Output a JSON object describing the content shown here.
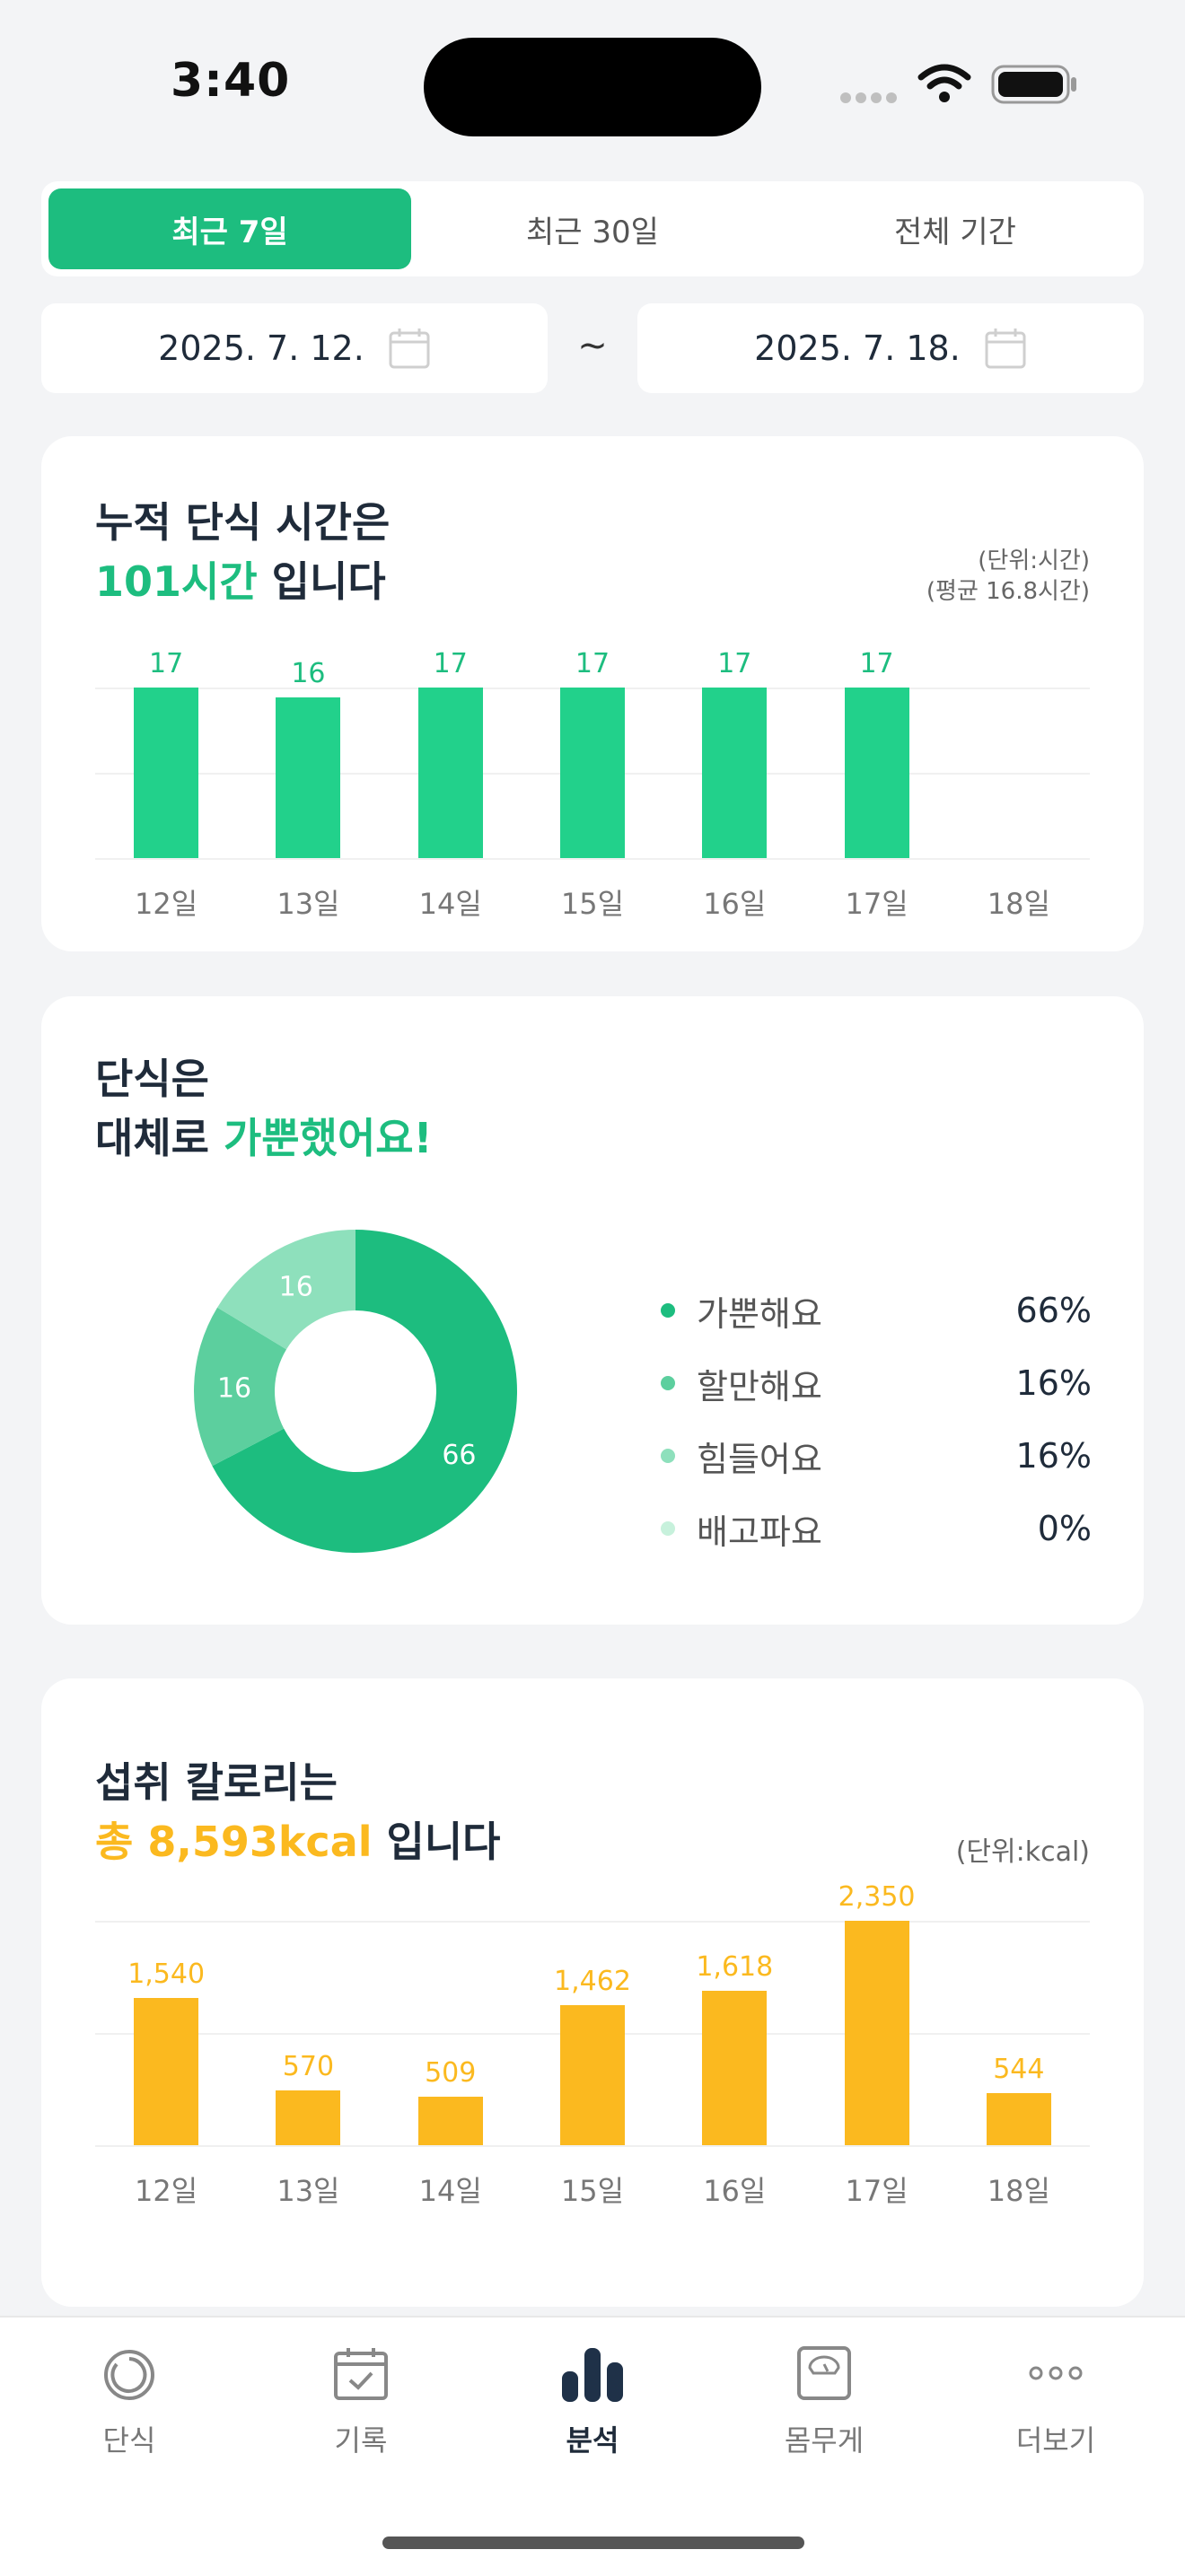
{
  "status": {
    "time": "3:40"
  },
  "tabs": [
    "최근 7일",
    "최근 30일",
    "전체 기간"
  ],
  "date_range": {
    "start": "2025. 7. 12.",
    "end": "2025. 7. 18.",
    "separator": "~"
  },
  "fasting_card": {
    "title_line1": "누적 단식 시간은",
    "highlight": "101시간",
    "title_suffix": " 입니다",
    "unit": "(단위:시간)",
    "average": "(평균 16.8시간)"
  },
  "mood_card": {
    "title_line1": "단식은",
    "title_prefix": "대체로 ",
    "highlight": "가뿐했어요!",
    "legend": [
      {
        "name": "가뿐해요",
        "value": "66%",
        "color": "#1dbd7f"
      },
      {
        "name": "할만해요",
        "value": "16%",
        "color": "#5ccf9e"
      },
      {
        "name": "힘들어요",
        "value": "16%",
        "color": "#8ee0bc"
      },
      {
        "name": "배고파요",
        "value": "0%",
        "color": "#c7f1dc"
      }
    ]
  },
  "calorie_card": {
    "title_line1": "섭취 칼로리는",
    "highlight": "총 8,593kcal",
    "title_suffix": " 입니다",
    "unit": "(단위:kcal)"
  },
  "chart_data": [
    {
      "type": "bar",
      "categories": [
        "12일",
        "13일",
        "14일",
        "15일",
        "16일",
        "17일",
        "18일"
      ],
      "values": [
        17,
        16,
        17,
        17,
        17,
        17,
        null
      ],
      "value_labels": [
        "17",
        "16",
        "17",
        "17",
        "17",
        "17",
        ""
      ],
      "ylim": [
        0,
        17
      ],
      "color": "#22d18b"
    },
    {
      "type": "pie",
      "labels": [
        "가뿐해요",
        "할만해요",
        "힘들어요",
        "배고파요"
      ],
      "values": [
        66,
        16,
        16,
        0
      ],
      "slice_labels": [
        "66",
        "16",
        "16",
        ""
      ],
      "colors": [
        "#1dbd7f",
        "#5ccf9e",
        "#8ee0bc",
        "#c7f1dc"
      ]
    },
    {
      "type": "bar",
      "categories": [
        "12일",
        "13일",
        "14일",
        "15일",
        "16일",
        "17일",
        "18일"
      ],
      "values": [
        1540,
        570,
        509,
        1462,
        1618,
        2350,
        544
      ],
      "value_labels": [
        "1,540",
        "570",
        "509",
        "1,462",
        "1,618",
        "2,350",
        "544"
      ],
      "ylim": [
        0,
        2350
      ],
      "color": "#fbb91f"
    }
  ],
  "tabbar": [
    {
      "label": "단식",
      "icon": "timer-icon"
    },
    {
      "label": "기록",
      "icon": "calendar-check-icon"
    },
    {
      "label": "분석",
      "icon": "bar-chart-icon"
    },
    {
      "label": "몸무게",
      "icon": "scale-icon"
    },
    {
      "label": "더보기",
      "icon": "more-icon"
    }
  ]
}
